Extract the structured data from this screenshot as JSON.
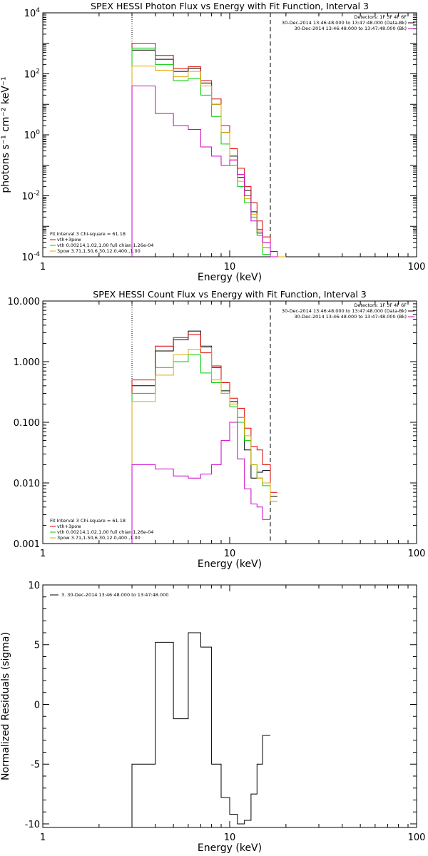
{
  "chart_data": [
    {
      "type": "line",
      "title": "SPEX HESSI Photon Flux vs Energy with Fit Function, Interval 3",
      "xlabel": "Energy (keV)",
      "ylabel": "photons s⁻¹ cm⁻² keV⁻¹",
      "xscale": "log",
      "yscale": "log",
      "xlim": [
        1,
        100
      ],
      "ylim": [
        0.0001,
        10000
      ],
      "x_ticks": [
        {
          "v": 1,
          "label": "1"
        },
        {
          "v": 10,
          "label": "10"
        },
        {
          "v": 100,
          "label": "100"
        }
      ],
      "y_ticks": [
        {
          "v": 0.0001,
          "base": "10",
          "exp": "-4"
        },
        {
          "v": 0.01,
          "base": "10",
          "exp": "-2"
        },
        {
          "v": 1,
          "base": "10",
          "exp": "0"
        },
        {
          "v": 100,
          "base": "10",
          "exp": "2"
        },
        {
          "v": 10000,
          "base": "10",
          "exp": "4"
        }
      ],
      "vlines": [
        {
          "x": 3.0,
          "style": "dotted"
        },
        {
          "x": 16.5,
          "style": "dashed"
        }
      ],
      "legend_tr": [
        "Detectors: 1F 3F 4F 6F",
        "30-Dec-2014 13:46:48.000 to 13:47:48.000 (Data-Bk)",
        "30-Dec-2014 13:46:48.000 to 13:47:48.000 (Bk)"
      ],
      "legend_bl": [
        "Fit Interval 3   Chi-square = 61.18",
        "vth+3pow",
        "vth 0.00214,1.02,1.00  full chian 1.26e-04",
        "3pow 3.71,1.50,6.30,12.0,400.,1.00"
      ],
      "edges": [
        3.0,
        4.0,
        5.0,
        6.0,
        7.0,
        8.0,
        9.0,
        10.0,
        11.0,
        12.0,
        13.0,
        14.0,
        15.0,
        16.5,
        18.0,
        20.0
      ],
      "series": [
        {
          "color": "#000000",
          "values": [
            600,
            300,
            120,
            150,
            50,
            10,
            1.2,
            0.2,
            0.04,
            0.015,
            0.003,
            0.0006,
            0.0002,
            6e-05,
            null
          ]
        },
        {
          "color": "#dd0000",
          "values": [
            1000,
            400,
            150,
            170,
            60,
            15,
            2.0,
            0.35,
            0.08,
            0.02,
            0.006,
            0.0015,
            0.00045,
            0.00015,
            0.0001
          ]
        },
        {
          "color": "#00cc00",
          "values": [
            700,
            200,
            60,
            70,
            20,
            4,
            0.5,
            0.1,
            0.02,
            0.006,
            0.002,
            0.0005,
            0.00012,
            5e-05,
            null
          ]
        },
        {
          "color": "#ddaa00",
          "values": [
            180,
            130,
            80,
            120,
            40,
            10,
            1.2,
            0.15,
            0.03,
            0.008,
            0.0025,
            0.0007,
            0.0002,
            8e-05,
            5e-05
          ]
        },
        {
          "color": "#cc00cc",
          "values": [
            40,
            5,
            2,
            1.5,
            0.4,
            0.2,
            0.1,
            0.15,
            0.05,
            0.01,
            0.0015,
            0.0008,
            0.0003,
            5e-05,
            null
          ]
        }
      ]
    },
    {
      "type": "line",
      "title": "SPEX HESSI Count Flux vs Energy with Fit Function, Interval 3",
      "xlabel": "Energy (keV)",
      "ylabel": "",
      "xscale": "log",
      "yscale": "log",
      "xlim": [
        1,
        100
      ],
      "ylim": [
        0.001,
        10
      ],
      "x_ticks": [
        {
          "v": 1,
          "label": "1"
        },
        {
          "v": 10,
          "label": "10"
        },
        {
          "v": 100,
          "label": "100"
        }
      ],
      "y_ticks": [
        {
          "v": 0.001,
          "label": "0.001"
        },
        {
          "v": 0.01,
          "label": "0.010"
        },
        {
          "v": 0.1,
          "label": "0.100"
        },
        {
          "v": 1,
          "label": "1.000"
        },
        {
          "v": 10,
          "label": "10.000"
        }
      ],
      "vlines": [
        {
          "x": 3.0,
          "style": "dotted"
        },
        {
          "x": 16.5,
          "style": "dashed"
        }
      ],
      "legend_tr": [
        "Detectors: 1F 3F 4F 6F",
        "30-Dec-2014 13:46:48.000 to 13:47:48.000 (Data-Bk)",
        "30-Dec-2014 13:46:48.000 to 13:47:48.000 (Bk)"
      ],
      "legend_bl": [
        "Fit Interval 3   Chi-square = 61.18",
        "vth+3pow",
        "vth 0.00214,1.02,1.00  full chian 1.26e-04",
        "3pow 3.71,1.50,6.30,12.0,400.,1.00"
      ],
      "edges": [
        3.0,
        4.0,
        5.0,
        6.0,
        7.0,
        8.0,
        9.0,
        10.0,
        11.0,
        12.0,
        13.0,
        14.0,
        15.0,
        16.5,
        18.0
      ],
      "series": [
        {
          "color": "#000000",
          "values": [
            0.4,
            1.5,
            2.3,
            3.2,
            1.8,
            0.8,
            0.33,
            0.22,
            0.12,
            0.035,
            0.012,
            0.015,
            0.016,
            0.006
          ]
        },
        {
          "color": "#dd0000",
          "values": [
            0.5,
            1.8,
            2.5,
            2.8,
            1.4,
            0.85,
            0.45,
            0.25,
            0.17,
            0.08,
            0.04,
            0.035,
            0.02,
            0.007
          ]
        },
        {
          "color": "#00cc00",
          "values": [
            0.3,
            0.8,
            1.0,
            1.3,
            0.65,
            0.45,
            0.3,
            0.18,
            0.1,
            0.05,
            0.02,
            0.012,
            0.009,
            0.005
          ]
        },
        {
          "color": "#ddaa00",
          "values": [
            0.22,
            0.6,
            1.3,
            1.6,
            1.7,
            0.5,
            0.3,
            0.2,
            0.12,
            0.06,
            0.02,
            0.012,
            0.01,
            0.005
          ]
        },
        {
          "color": "#cc00cc",
          "values": [
            0.02,
            0.017,
            0.013,
            0.012,
            0.014,
            0.02,
            0.05,
            0.1,
            0.025,
            0.008,
            0.0045,
            0.004,
            0.0025,
            null
          ]
        }
      ]
    },
    {
      "type": "line",
      "title": "",
      "xlabel": "Energy (keV)",
      "ylabel": "Normalized Residuals (sigma)",
      "xscale": "log",
      "yscale": "linear",
      "xlim": [
        1,
        100
      ],
      "ylim": [
        -10.3,
        10
      ],
      "x_ticks": [
        {
          "v": 1,
          "label": "1"
        },
        {
          "v": 10,
          "label": "10"
        },
        {
          "v": 100,
          "label": "100"
        }
      ],
      "y_ticks": [
        {
          "v": -10,
          "label": "-10"
        },
        {
          "v": -5,
          "label": "-5"
        },
        {
          "v": 0,
          "label": "0"
        },
        {
          "v": 5,
          "label": "5"
        },
        {
          "v": 10,
          "label": "10"
        }
      ],
      "legend_tl": [
        "3. 30-Dec-2014 13:46:48.000 to 13:47:48.000"
      ],
      "edges": [
        3.0,
        4.0,
        5.0,
        6.0,
        7.0,
        8.0,
        9.0,
        10.0,
        11.0,
        12.0,
        13.0,
        14.0,
        15.0,
        16.5
      ],
      "series": [
        {
          "color": "#000000",
          "values": [
            -5,
            5.2,
            -1.2,
            6,
            4.8,
            -5,
            -7.8,
            -9.2,
            -10,
            -9.7,
            -7.5,
            -5,
            -2.6
          ]
        }
      ]
    }
  ]
}
